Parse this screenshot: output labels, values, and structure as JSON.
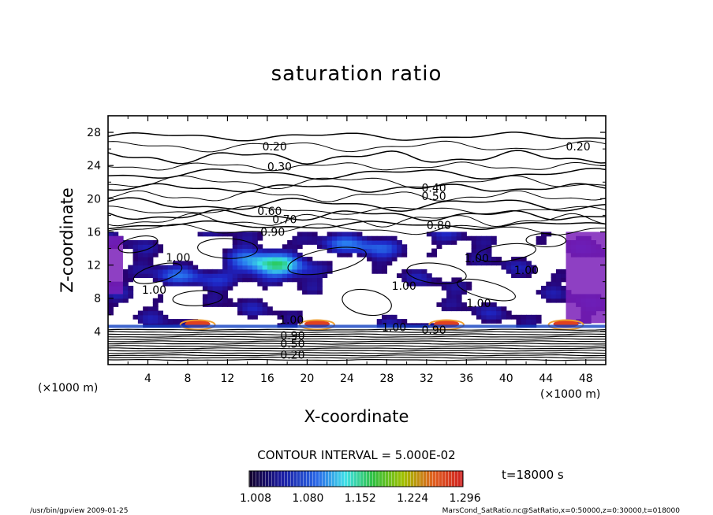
{
  "chart_data": {
    "type": "heatmap",
    "title": "saturation ratio",
    "xlabel": "X-coordinate",
    "ylabel": "Z-coordinate",
    "x_unit_left": "(×1000 m)",
    "x_unit_right": "(×1000 m)",
    "xlim": [
      0,
      50
    ],
    "ylim": [
      0,
      30
    ],
    "xticks": [
      "4",
      "8",
      "12",
      "16",
      "20",
      "24",
      "28",
      "32",
      "36",
      "40",
      "44",
      "48"
    ],
    "yticks": [
      "4",
      "8",
      "12",
      "16",
      "20",
      "24",
      "28"
    ],
    "xtick_values": [
      4,
      8,
      12,
      16,
      20,
      24,
      28,
      32,
      36,
      40,
      44,
      48
    ],
    "ytick_values": [
      4,
      8,
      12,
      16,
      20,
      24,
      28
    ],
    "contour_interval": "CONTOUR INTERVAL = 5.000E-02",
    "time_label": "t=18000 s",
    "colorbar_ticks": [
      "1.008",
      "1.080",
      "1.152",
      "1.224",
      "1.296"
    ],
    "colorbar_range": [
      1.008,
      1.296
    ],
    "contour_labels": [
      {
        "text": "0.20",
        "x": 15.5,
        "z": 26.3
      },
      {
        "text": "0.20",
        "x": 46.0,
        "z": 26.3
      },
      {
        "text": "0.30",
        "x": 16.0,
        "z": 23.9
      },
      {
        "text": "0.40",
        "x": 31.5,
        "z": 21.3
      },
      {
        "text": "0.50",
        "x": 31.5,
        "z": 20.3
      },
      {
        "text": "0.60",
        "x": 15.0,
        "z": 18.5
      },
      {
        "text": "0.70",
        "x": 16.5,
        "z": 17.5
      },
      {
        "text": "0.80",
        "x": 32.0,
        "z": 16.8
      },
      {
        "text": "0.90",
        "x": 15.3,
        "z": 16.0
      },
      {
        "text": "1.00",
        "x": 5.8,
        "z": 12.9
      },
      {
        "text": "1.00",
        "x": 35.8,
        "z": 12.8
      },
      {
        "text": "1.00",
        "x": 40.8,
        "z": 11.4
      },
      {
        "text": "1.00",
        "x": 28.5,
        "z": 9.5
      },
      {
        "text": "1.00",
        "x": 36.0,
        "z": 7.4
      },
      {
        "text": "1.00",
        "x": 3.4,
        "z": 9.0
      },
      {
        "text": "1.00",
        "x": 17.2,
        "z": 5.4
      },
      {
        "text": "1.00",
        "x": 27.5,
        "z": 4.5
      },
      {
        "text": "0.90",
        "x": 31.5,
        "z": 4.2
      },
      {
        "text": "0.90",
        "x": 17.3,
        "z": 3.5
      },
      {
        "text": "0.50",
        "x": 17.3,
        "z": 2.5
      },
      {
        "text": "0.20",
        "x": 17.3,
        "z": 1.2
      }
    ],
    "footer_left": "/usr/bin/gpview   2009-01-25",
    "footer_right": "MarsCond_SatRatio.nc@SatRatio,x=0:50000,z=0:30000,t=018000"
  }
}
